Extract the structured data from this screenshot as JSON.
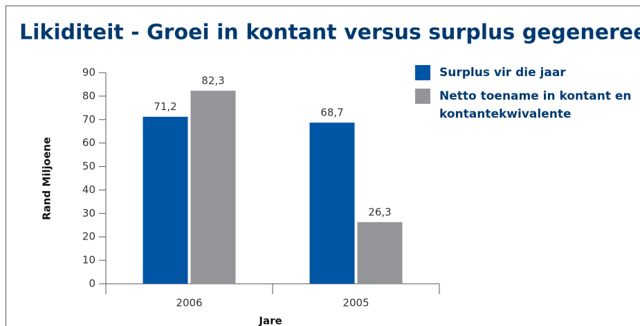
{
  "chart_data": {
    "type": "bar",
    "title": "Likiditeit - Groei in kontant versus surplus gegenereer",
    "x_label": "Jare",
    "y_label": "Rand Miljoene",
    "categories": [
      "2006",
      "2005"
    ],
    "series": [
      {
        "name": "Surplus vir die jaar",
        "color": "#0055a5",
        "values": [
          71.2,
          68.7
        ],
        "value_labels": [
          "71,2",
          "68,7"
        ]
      },
      {
        "name": "Netto toename in kontant en kontantekwivalente",
        "color": "#939598",
        "values": [
          82.3,
          26.3
        ],
        "value_labels": [
          "82,3",
          "26,3"
        ]
      }
    ],
    "ylim": [
      0,
      90
    ],
    "yticks": [
      0,
      10,
      20,
      30,
      40,
      50,
      60,
      70,
      80,
      90
    ],
    "legend": "right"
  }
}
